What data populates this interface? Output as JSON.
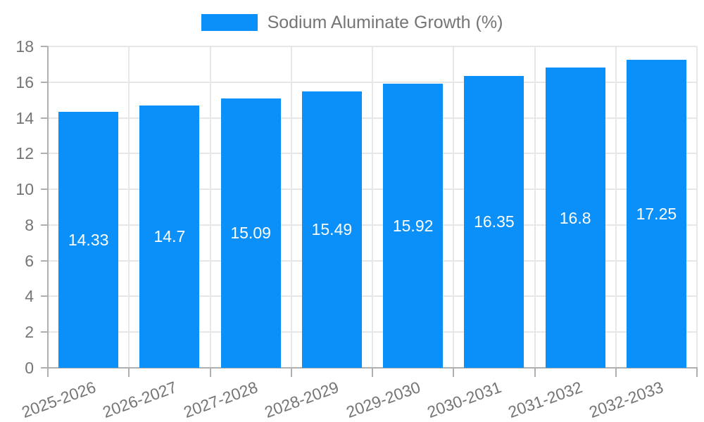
{
  "legend": {
    "label": "Sodium Aluminate Growth (%)"
  },
  "colors": {
    "bar": "#0a90f8",
    "axis_line": "#b0b0b0",
    "grid_line": "#e7e7e7",
    "tick_text": "#757575",
    "legend_text": "#757575",
    "value_text": "#ffffff",
    "background": "#ffffff"
  },
  "chart_data": {
    "type": "bar",
    "title": "Sodium Aluminate Growth (%)",
    "series_name": "Sodium Aluminate Growth (%)",
    "categories": [
      "2025-2026",
      "2026-2027",
      "2027-2028",
      "2028-2029",
      "2029-2030",
      "2030-2031",
      "2031-2032",
      "2032-2033"
    ],
    "values": [
      14.33,
      14.7,
      15.09,
      15.49,
      15.92,
      16.35,
      16.8,
      17.25
    ],
    "value_labels": [
      "14.33",
      "14.7",
      "15.09",
      "15.49",
      "15.92",
      "16.35",
      "16.8",
      "17.25"
    ],
    "xlabel": "",
    "ylabel": "",
    "ylim": [
      0,
      18
    ],
    "yticks": [
      0,
      2,
      4,
      6,
      8,
      10,
      12,
      14,
      16,
      18
    ],
    "grid": true,
    "legend_position": "top",
    "value_label_position": "center"
  }
}
